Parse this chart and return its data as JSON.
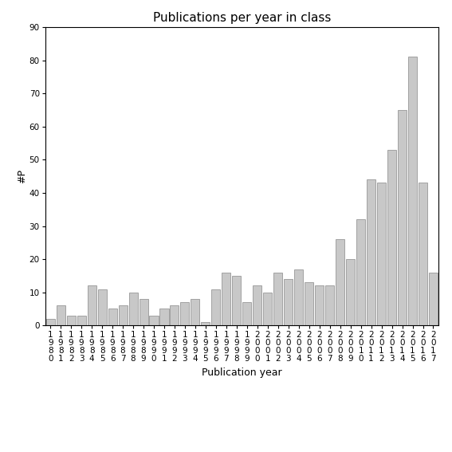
{
  "title": "Publications per year in class",
  "xlabel": "Publication year",
  "ylabel": "#P",
  "years": [
    1980,
    1981,
    1982,
    1983,
    1984,
    1985,
    1986,
    1987,
    1988,
    1989,
    1990,
    1991,
    1992,
    1993,
    1994,
    1995,
    1996,
    1997,
    1998,
    1999,
    2000,
    2001,
    2002,
    2003,
    2004,
    2005,
    2006,
    2007,
    2008,
    2009,
    2010,
    2011,
    2012,
    2013,
    2014,
    2015,
    2016,
    2017
  ],
  "values": [
    2,
    6,
    3,
    3,
    12,
    11,
    5,
    6,
    10,
    8,
    3,
    5,
    6,
    7,
    8,
    1,
    11,
    16,
    15,
    7,
    12,
    10,
    16,
    14,
    17,
    13,
    12,
    12,
    26,
    20,
    32,
    44,
    43,
    53,
    65,
    81,
    43,
    16
  ],
  "bar_color": "#c8c8c8",
  "bar_edgecolor": "#888888",
  "ylim": [
    0,
    90
  ],
  "yticks": [
    0,
    10,
    20,
    30,
    40,
    50,
    60,
    70,
    80,
    90
  ],
  "bg_color": "#ffffff",
  "title_fontsize": 11,
  "label_fontsize": 9,
  "tick_fontsize": 7.5
}
